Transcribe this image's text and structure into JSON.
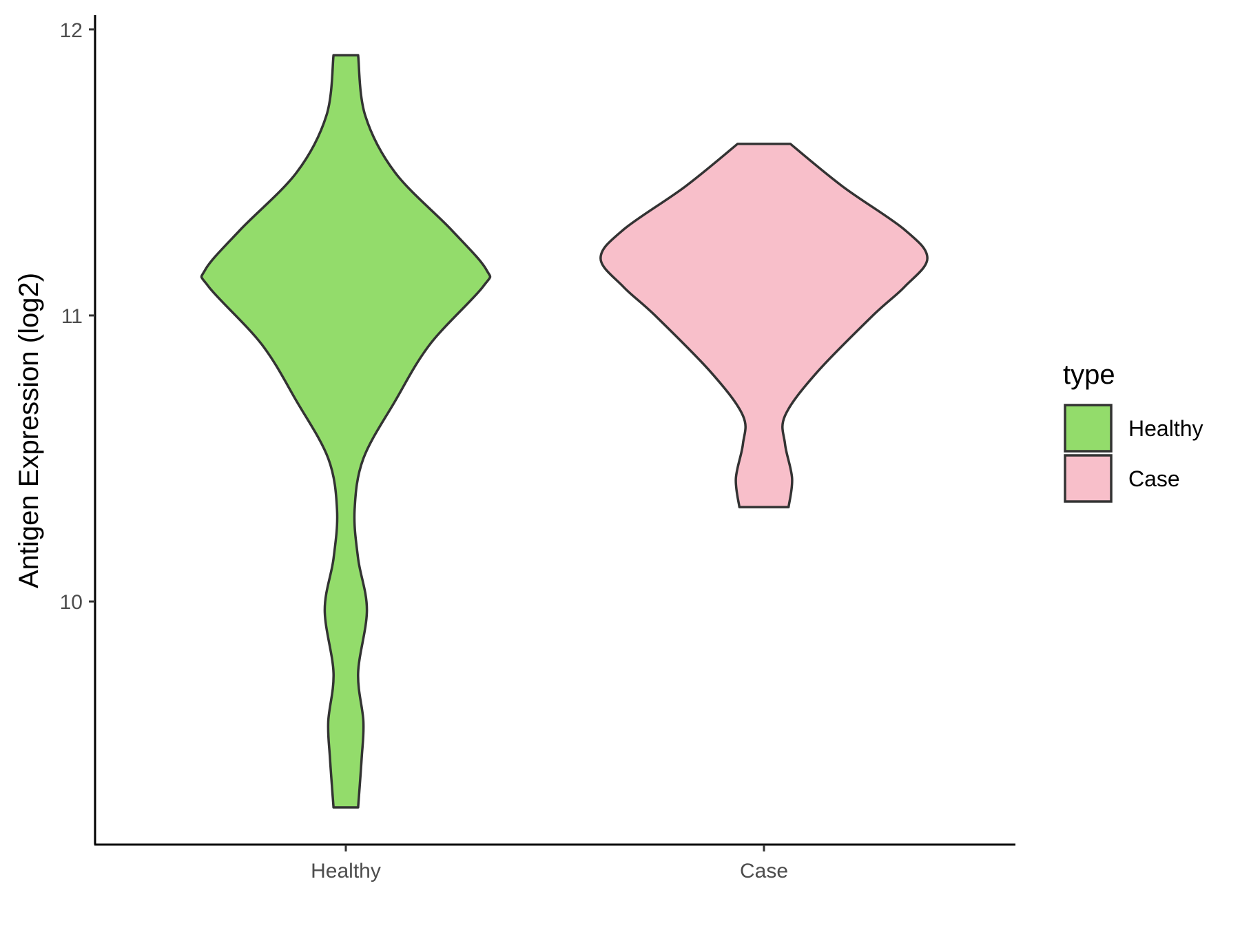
{
  "chart_data": {
    "type": "violin",
    "title": "",
    "xlabel": "",
    "ylabel": "Antigen Expression (log2)",
    "ylim": [
      9.15,
      12.05
    ],
    "yticks": [
      "10",
      "11",
      "12"
    ],
    "categories": [
      "Healthy",
      "Case"
    ],
    "grid": false,
    "legend": {
      "title": "type",
      "position": "right",
      "entries": [
        "Healthy",
        "Case"
      ]
    },
    "series": [
      {
        "name": "Healthy",
        "color": "#93dc6b",
        "min": 9.28,
        "max": 11.91,
        "density_profile": [
          [
            9.28,
            0.07
          ],
          [
            9.45,
            0.09
          ],
          [
            9.58,
            0.1
          ],
          [
            9.75,
            0.07
          ],
          [
            9.97,
            0.12
          ],
          [
            10.15,
            0.07
          ],
          [
            10.32,
            0.05
          ],
          [
            10.5,
            0.1
          ],
          [
            10.7,
            0.28
          ],
          [
            10.9,
            0.48
          ],
          [
            11.1,
            0.78
          ],
          [
            11.16,
            0.8
          ],
          [
            11.3,
            0.6
          ],
          [
            11.5,
            0.28
          ],
          [
            11.7,
            0.11
          ],
          [
            11.91,
            0.07
          ]
        ]
      },
      {
        "name": "Case",
        "color": "#f8bfca",
        "min": 10.33,
        "max": 11.6,
        "density_profile": [
          [
            10.33,
            0.14
          ],
          [
            10.43,
            0.16
          ],
          [
            10.55,
            0.12
          ],
          [
            10.65,
            0.12
          ],
          [
            10.8,
            0.3
          ],
          [
            11.0,
            0.62
          ],
          [
            11.1,
            0.8
          ],
          [
            11.2,
            0.93
          ],
          [
            11.3,
            0.8
          ],
          [
            11.45,
            0.45
          ],
          [
            11.6,
            0.15
          ]
        ]
      }
    ]
  }
}
